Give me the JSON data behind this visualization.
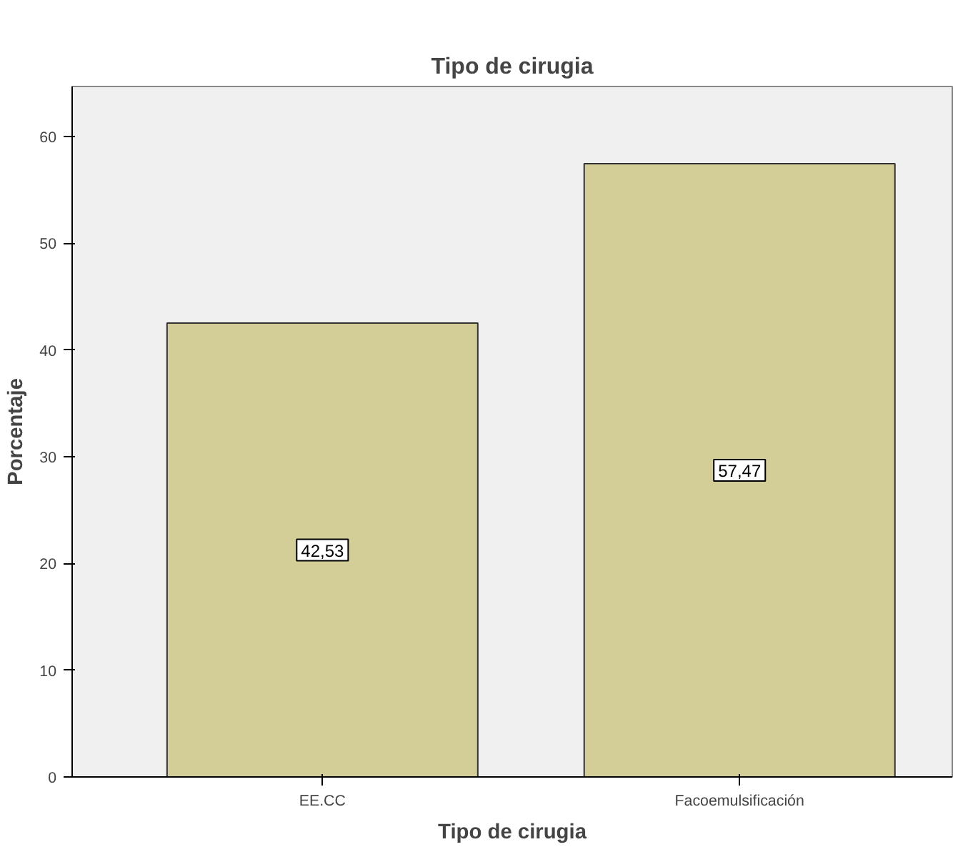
{
  "chart_data": {
    "type": "bar",
    "title": "Tipo de cirugia",
    "xlabel": "Tipo de cirugia",
    "ylabel": "Porcentaje",
    "categories": [
      "EE.CC",
      "Facoemulsificación"
    ],
    "values": [
      42.53,
      57.47
    ],
    "value_labels": [
      "42,53",
      "57,47"
    ],
    "color": "#d3ce98",
    "ylim": [
      0,
      64.7
    ],
    "yticks": [
      0,
      10,
      20,
      30,
      40,
      50,
      60
    ],
    "grid": false
  }
}
